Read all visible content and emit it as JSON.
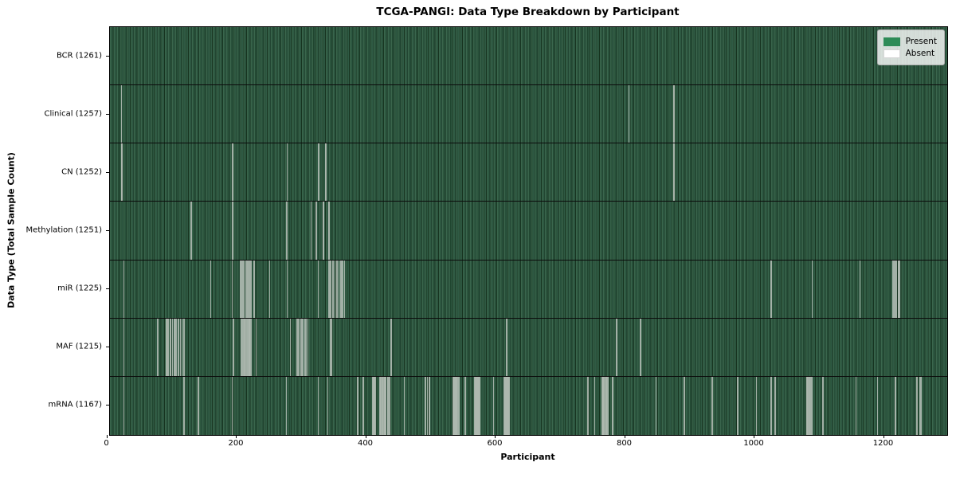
{
  "title": "TCGA-PANGI: Data Type Breakdown by Participant",
  "chart_data": {
    "type": "heatmap",
    "title": "TCGA-PANGI: Data Type Breakdown by Participant",
    "xlabel": "Participant",
    "ylabel": "Data Type (Total Sample Count)",
    "x_ticks": [
      0,
      200,
      400,
      600,
      800,
      1000,
      1200
    ],
    "x_range": [
      0,
      1295
    ],
    "n_participants": 1261,
    "grid": false,
    "legend": {
      "position": "upper-right",
      "entries": [
        {
          "label": "Present",
          "color": "#2E8B57"
        },
        {
          "label": "Absent",
          "color": "#FFFFFF"
        }
      ]
    },
    "rows": [
      {
        "label": "BCR (1261)",
        "data_type": "BCR",
        "count": 1261,
        "absent": []
      },
      {
        "label": "Clinical (1257)",
        "data_type": "Clinical",
        "count": 1257,
        "absent": [
          21,
          805,
          874,
          875
        ]
      },
      {
        "label": "CN (1252)",
        "data_type": "CN",
        "count": 1252,
        "absent": [
          21,
          22,
          193,
          277,
          326,
          336,
          337,
          874,
          875
        ]
      },
      {
        "label": "Methylation (1251)",
        "data_type": "Methylation",
        "count": 1251,
        "absent": [
          129,
          193,
          276,
          277,
          314,
          322,
          333,
          334,
          341,
          342
        ]
      },
      {
        "label": "miR (1225)",
        "data_type": "miR",
        "count": 1225,
        "absent": [
          25,
          159,
          192,
          205,
          207,
          209,
          211,
          213,
          215,
          217,
          219,
          221,
          226,
          250,
          277,
          325,
          341,
          343,
          345,
          348,
          351,
          354,
          357,
          360,
          363,
          366,
          1025,
          1088,
          1162,
          1213,
          1215,
          1217,
          1219,
          1221,
          1222,
          1223
        ]
      },
      {
        "label": "MAF (1215)",
        "data_type": "MAF",
        "count": 1215,
        "absent": [
          25,
          77,
          91,
          92,
          94,
          96,
          97,
          100,
          103,
          104,
          106,
          109,
          112,
          115,
          118,
          194,
          206,
          207,
          208,
          210,
          211,
          212,
          214,
          216,
          218,
          219,
          220,
          222,
          229,
          282,
          292,
          293,
          295,
          298,
          299,
          301,
          304,
          305,
          307,
          309,
          344,
          346,
          438,
          616,
          786,
          823
        ]
      },
      {
        "label": "mRNA (1167)",
        "data_type": "mRNA",
        "count": 1167,
        "absent": [
          25,
          118,
          140,
          192,
          276,
          325,
          340,
          386,
          395,
          409,
          410,
          411,
          412,
          413,
          420,
          421,
          422,
          424,
          425,
          427,
          428,
          429,
          430,
          432,
          433,
          435,
          436,
          458,
          491,
          494,
          497,
          534,
          535,
          536,
          537,
          538,
          539,
          540,
          542,
          543,
          552,
          567,
          568,
          569,
          570,
          571,
          572,
          573,
          574,
          575,
          596,
          612,
          613,
          614,
          615,
          616,
          617,
          618,
          619,
          620,
          742,
          752,
          764,
          765,
          766,
          767,
          768,
          770,
          771,
          772,
          773,
          780,
          847,
          891,
          934,
          973,
          1002,
          1025,
          1031,
          1080,
          1081,
          1083,
          1084,
          1086,
          1087,
          1088,
          1105,
          1156,
          1189,
          1216,
          1217,
          1250,
          1255,
          1257
        ]
      }
    ]
  }
}
